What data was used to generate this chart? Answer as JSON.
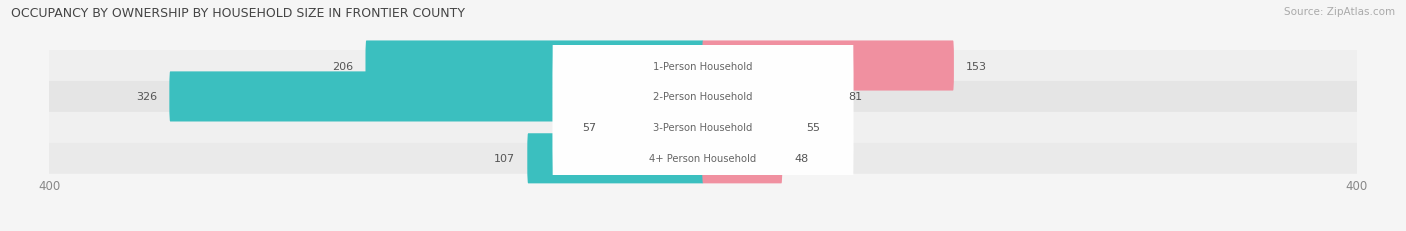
{
  "title": "OCCUPANCY BY OWNERSHIP BY HOUSEHOLD SIZE IN FRONTIER COUNTY",
  "source": "Source: ZipAtlas.com",
  "categories": [
    "1-Person Household",
    "2-Person Household",
    "3-Person Household",
    "4+ Person Household"
  ],
  "owner_values": [
    206,
    326,
    57,
    107
  ],
  "renter_values": [
    153,
    81,
    55,
    48
  ],
  "x_max": 400,
  "owner_color": "#3bbfbf",
  "renter_color": "#f090a0",
  "row_colors": [
    "#efefef",
    "#e6e6e6",
    "#f2f2f2",
    "#e9e9e9"
  ],
  "label_color": "#666666",
  "value_color": "#555555",
  "cat_label_color": "#666666",
  "title_color": "#444444",
  "source_color": "#aaaaaa",
  "bg_color": "#f5f5f5"
}
